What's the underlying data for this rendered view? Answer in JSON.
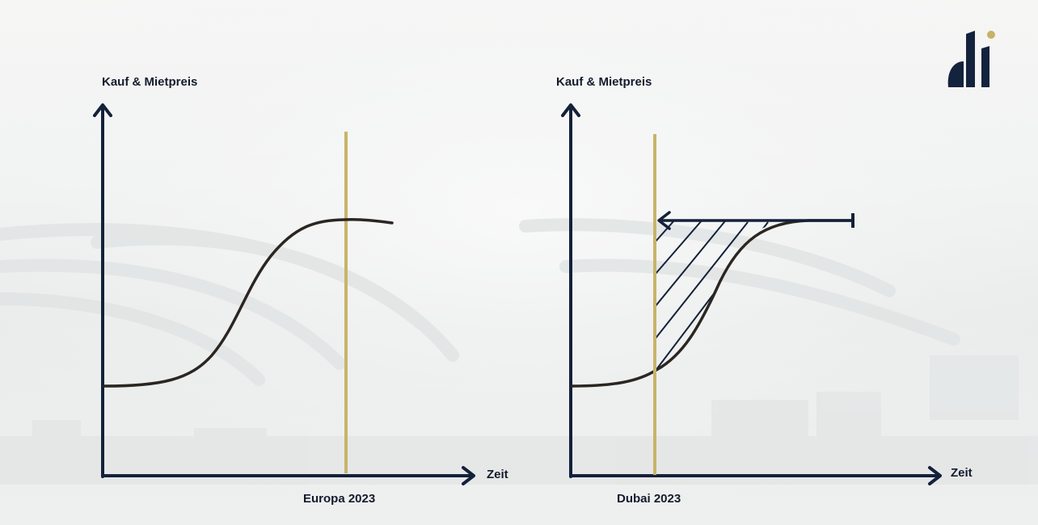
{
  "diagram_left": {
    "y_axis_label": "Kauf & Mietpreis",
    "x_axis_label": "Zeit",
    "marker_label": "Europa 2023"
  },
  "diagram_right": {
    "y_axis_label": "Kauf & Mietpreis",
    "x_axis_label": "Zeit",
    "marker_label": "Dubai 2023"
  },
  "colors": {
    "axis": "#14213a",
    "curve": "#2b2622",
    "marker_line": "#c8b46a",
    "logo_dark": "#14233d",
    "logo_dot": "#c9b265"
  },
  "logo": {
    "icon": "di-brand-logo"
  }
}
